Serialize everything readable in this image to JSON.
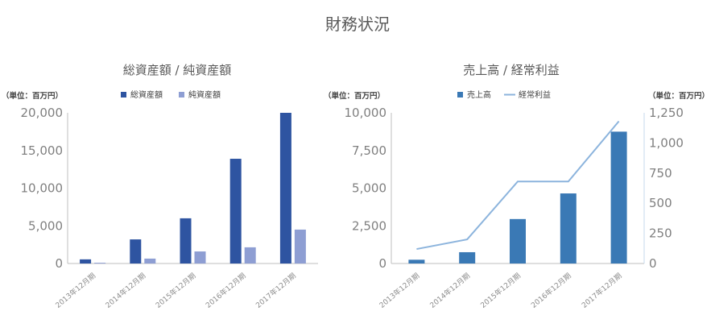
{
  "page_title": "財務状況",
  "chart_data": [
    {
      "type": "bar",
      "title": "総資産額 / 純資産額",
      "unit_label": "（単位：百万円）",
      "categories": [
        "2013年12月期",
        "2014年12月期",
        "2015年12月期",
        "2016年12月期",
        "2017年12月期"
      ],
      "series": [
        {
          "name": "総資産額",
          "color": "#2e54a1",
          "values": [
            550,
            3200,
            6000,
            13900,
            20000
          ]
        },
        {
          "name": "純資産額",
          "color": "#8e9ed3",
          "values": [
            100,
            650,
            1600,
            2150,
            4500
          ]
        }
      ],
      "ylim": [
        0,
        20000
      ],
      "yticks": [
        "0",
        "5,000",
        "10,000",
        "15,000",
        "20,000"
      ],
      "legend": "top",
      "grid": false
    },
    {
      "type": "bar+line",
      "title": "売上高 / 経常利益",
      "unit_label_left": "（単位：百万円）",
      "unit_label_right": "（単位：百万円）",
      "categories": [
        "2013年12月期",
        "2014年12月期",
        "2015年12月期",
        "2016年12月期",
        "2017年12月期"
      ],
      "bar_series": {
        "name": "売上高",
        "color": "#3a79b5",
        "values": [
          250,
          750,
          2950,
          4650,
          8750
        ]
      },
      "line_series": {
        "name": "経常利益",
        "color": "#8cb4dd",
        "values": [
          120,
          200,
          680,
          680,
          1180
        ]
      },
      "ylim_left": [
        0,
        10000
      ],
      "ylim_right": [
        0,
        1250
      ],
      "yticks_left": [
        "0",
        "2,500",
        "5,000",
        "7,500",
        "10,000"
      ],
      "yticks_right": [
        "0",
        "250",
        "500",
        "750",
        "1,000",
        "1,250"
      ],
      "legend": "top",
      "grid": false
    }
  ]
}
